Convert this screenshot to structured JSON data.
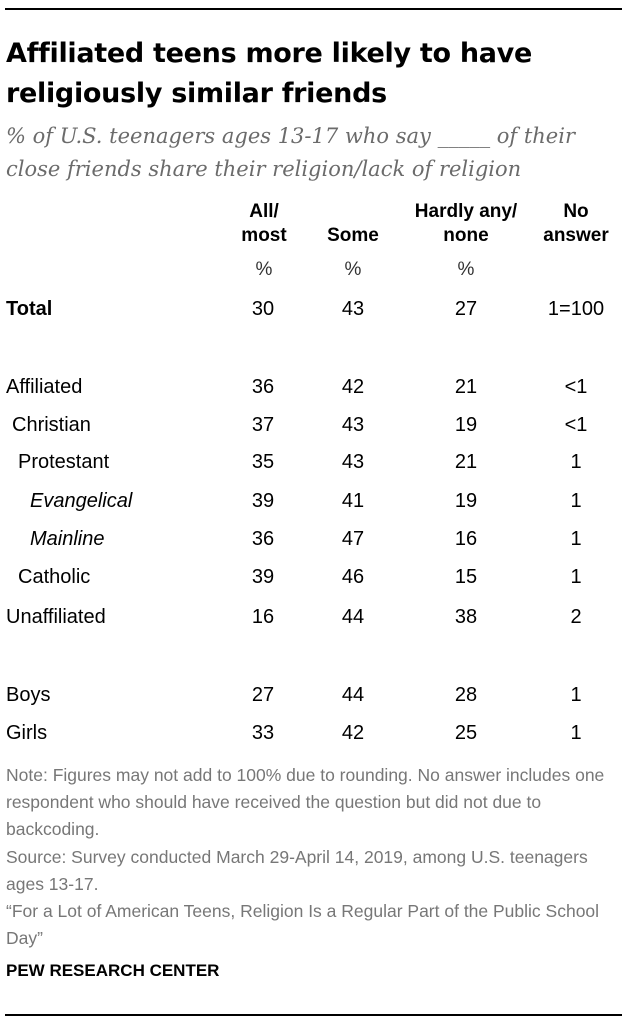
{
  "title": "Affiliated teens more likely to have religiously similar friends",
  "subtitle": "% of U.S. teenagers ages 13-17 who say _____ of their close friends share their religion/lack of religion",
  "chart_data": {
    "type": "table",
    "columns": [
      {
        "label_line1": "All/",
        "label_line2": "most",
        "unit": "%"
      },
      {
        "label_line1": "",
        "label_line2": "Some",
        "unit": "%"
      },
      {
        "label_line1": "Hardly any/",
        "label_line2": "none",
        "unit": "%"
      },
      {
        "label_line1": "No",
        "label_line2": "answer",
        "unit": ""
      }
    ],
    "rows": [
      {
        "label": "Total",
        "values": [
          "30",
          "43",
          "27",
          "1=100"
        ],
        "style": "bold"
      },
      {
        "label": "Affiliated",
        "values": [
          "36",
          "42",
          "21",
          "<1"
        ],
        "style": "normal"
      },
      {
        "label": "Christian",
        "values": [
          "37",
          "43",
          "19",
          "<1"
        ],
        "style": "normal"
      },
      {
        "label": "Protestant",
        "values": [
          "35",
          "43",
          "21",
          "1"
        ],
        "style": "normal"
      },
      {
        "label": "Evangelical",
        "values": [
          "39",
          "41",
          "19",
          "1"
        ],
        "style": "italic"
      },
      {
        "label": "Mainline",
        "values": [
          "36",
          "47",
          "16",
          "1"
        ],
        "style": "italic"
      },
      {
        "label": "Catholic",
        "values": [
          "39",
          "46",
          "15",
          "1"
        ],
        "style": "normal"
      },
      {
        "label": "Unaffiliated",
        "values": [
          "16",
          "44",
          "38",
          "2"
        ],
        "style": "normal"
      },
      {
        "label": "Boys",
        "values": [
          "27",
          "44",
          "28",
          "1"
        ],
        "style": "normal"
      },
      {
        "label": "Girls",
        "values": [
          "33",
          "42",
          "25",
          "1"
        ],
        "style": "normal"
      }
    ]
  },
  "notes": {
    "note": "Note: Figures may not add to 100% due to rounding. No answer includes one respondent who should have received the question but did not due to backcoding.",
    "source": "Source: Survey conducted March 29-April 14, 2019, among U.S. teenagers ages 13-17.",
    "report": "“For a Lot of American Teens, Religion Is a Regular Part of the Public School Day”"
  },
  "brand": "PEW RESEARCH CENTER"
}
